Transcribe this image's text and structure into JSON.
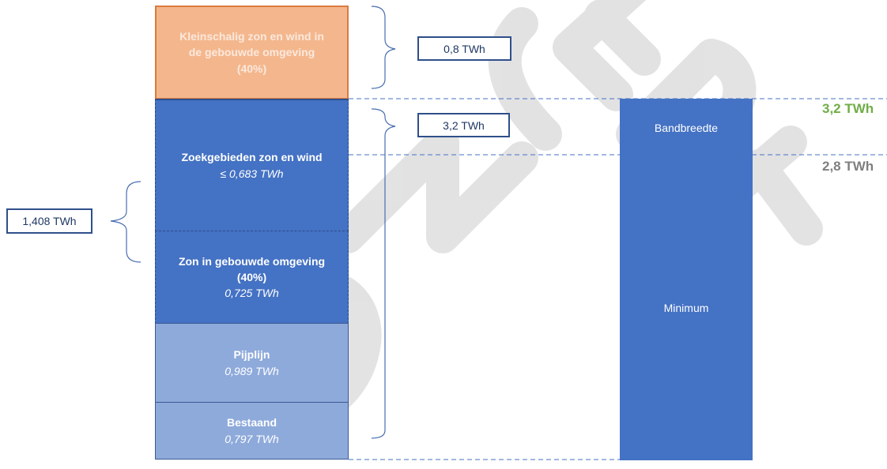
{
  "blocks": {
    "kleinschalig": {
      "title": "Kleinschalig zon en wind in\nde gebouwde omgeving\n(40%)"
    },
    "zoekgebieden": {
      "title": "Zoekgebieden zon en wind",
      "value": "≤ 0,683 TWh"
    },
    "zon_gebouwd": {
      "title": "Zon in gebouwde omgeving\n(40%)",
      "value": "0,725 TWh"
    },
    "pijplijn": {
      "title": "Pijplijn",
      "value": "0,989 TWh"
    },
    "bestaand": {
      "title": "Bestaand",
      "value": "0,797 TWh"
    }
  },
  "right_bar": {
    "band_label": "Bandbreedte",
    "minimum_label": "Minimum"
  },
  "value_boxes": {
    "top": "0,8 TWh",
    "middle": "3,2 TWh",
    "left": "1,408 TWh"
  },
  "levels": {
    "upper": {
      "label": "3,2 TWh",
      "color": "#70ad47"
    },
    "lower": {
      "label": "2,8 TWh",
      "color": "#7f7f7f"
    }
  },
  "colors": {
    "dark_blue": "#4472c4",
    "light_blue": "#8eaadb",
    "orange": "#f4b184",
    "orange_border": "#d7702f",
    "watermark": "#d9d9d9"
  }
}
